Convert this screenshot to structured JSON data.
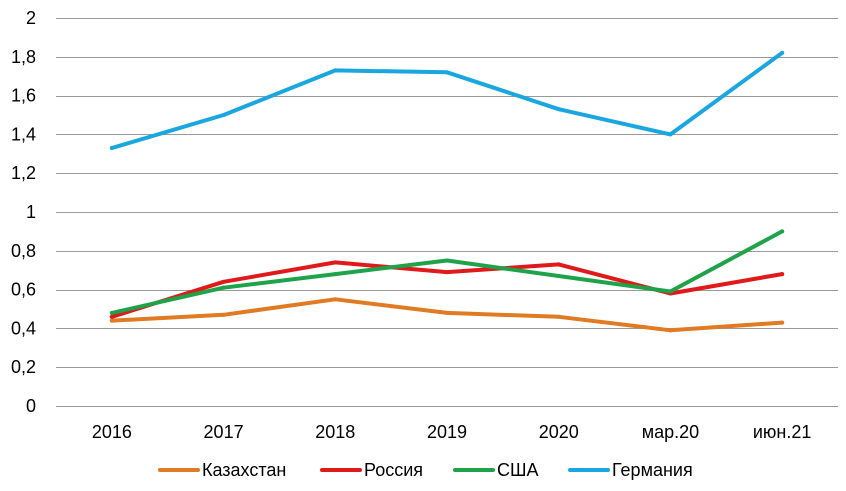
{
  "chart_data": {
    "type": "line",
    "title": "",
    "xlabel": "",
    "ylabel": "",
    "categories": [
      "2016",
      "2017",
      "2018",
      "2019",
      "2020",
      "мар.20",
      "июн.21"
    ],
    "ylim": [
      0,
      2
    ],
    "yticks": [
      "0",
      "0,2",
      "0,4",
      "0,6",
      "0,8",
      "1",
      "1,2",
      "1,4",
      "1,6",
      "1,8",
      "2"
    ],
    "ytick_values": [
      0,
      0.2,
      0.4,
      0.6,
      0.8,
      1.0,
      1.2,
      1.4,
      1.6,
      1.8,
      2.0
    ],
    "grid": true,
    "legend_position": "bottom",
    "series": [
      {
        "name": "Казахстан",
        "color": "#e07b24",
        "values": [
          0.44,
          0.47,
          0.55,
          0.48,
          0.46,
          0.39,
          0.43
        ]
      },
      {
        "name": "Россия",
        "color": "#e01a1a",
        "values": [
          0.46,
          0.64,
          0.74,
          0.69,
          0.73,
          0.58,
          0.68
        ]
      },
      {
        "name": "США",
        "color": "#1fa34a",
        "values": [
          0.48,
          0.61,
          0.68,
          0.75,
          0.67,
          0.59,
          0.9
        ]
      },
      {
        "name": "Германия",
        "color": "#1aa7e0",
        "values": [
          1.33,
          1.5,
          1.73,
          1.72,
          1.53,
          1.4,
          1.82
        ]
      }
    ]
  }
}
